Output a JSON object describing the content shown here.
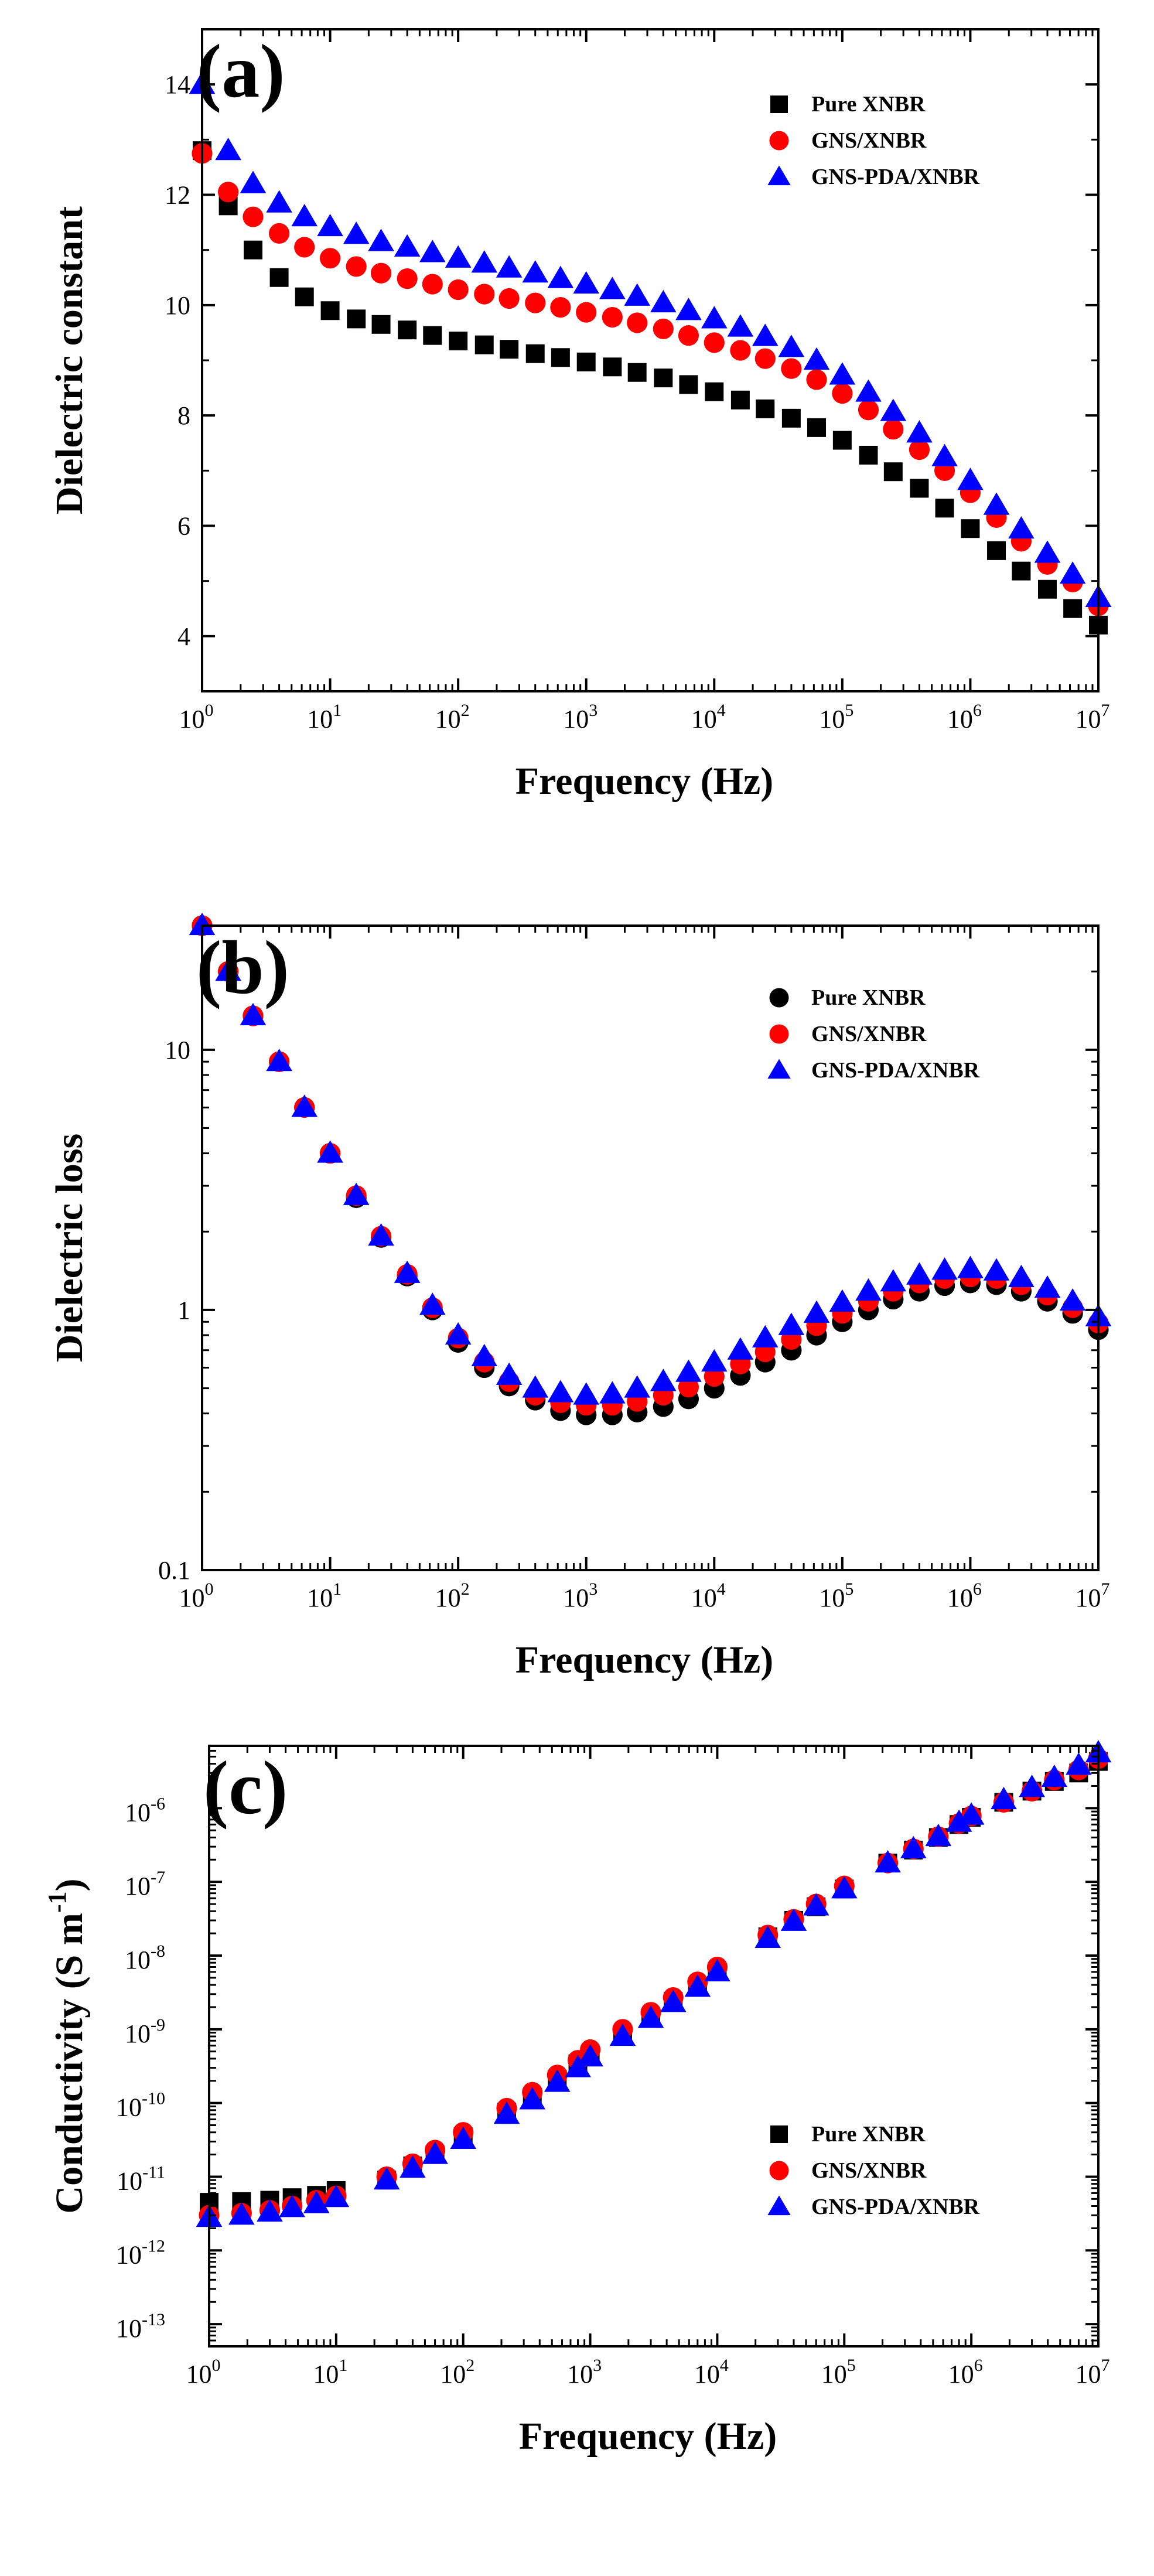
{
  "chart_data": [
    {
      "type": "scatter",
      "panel_label": "(a)",
      "xlabel": "Frequency (Hz)",
      "ylabel": "Dielectric constant",
      "xscale": "log",
      "yscale": "linear",
      "xlim": [
        1,
        10000000
      ],
      "ylim": [
        3,
        15
      ],
      "yticks": [
        4,
        6,
        8,
        10,
        12,
        14
      ],
      "xtick_bases": [
        "10",
        "10",
        "10",
        "10",
        "10",
        "10",
        "10",
        "10"
      ],
      "xtick_exponents": [
        "0",
        "1",
        "2",
        "3",
        "4",
        "5",
        "6",
        "7"
      ],
      "ytick_labels": [
        "4",
        "6",
        "8",
        "10",
        "12",
        "14"
      ],
      "legend_position": "top-right",
      "series": [
        {
          "name": "Pure XNBR",
          "marker": "square",
          "color": "#000000",
          "x": [
            1,
            1.6,
            2.5,
            4,
            6.3,
            10,
            16,
            25,
            40,
            63,
            100,
            160,
            250,
            400,
            630,
            1000,
            1600,
            2500,
            4000,
            6300,
            10000,
            16000,
            25000,
            40000,
            63000,
            100000,
            160000,
            250000,
            400000,
            630000,
            1000000,
            1600000,
            2500000,
            4000000,
            6300000,
            10000000
          ],
          "y": [
            12.8,
            11.8,
            11.0,
            10.5,
            10.15,
            9.9,
            9.75,
            9.65,
            9.55,
            9.45,
            9.35,
            9.28,
            9.2,
            9.12,
            9.05,
            8.97,
            8.88,
            8.78,
            8.68,
            8.56,
            8.43,
            8.28,
            8.12,
            7.95,
            7.78,
            7.55,
            7.28,
            6.98,
            6.68,
            6.32,
            5.95,
            5.55,
            5.18,
            4.85,
            4.5,
            4.2
          ]
        },
        {
          "name": "GNS/XNBR",
          "marker": "circle",
          "color": "#ff0000",
          "x": [
            1,
            1.6,
            2.5,
            4,
            6.3,
            10,
            16,
            25,
            40,
            63,
            100,
            160,
            250,
            400,
            630,
            1000,
            1600,
            2500,
            4000,
            6300,
            10000,
            16000,
            25000,
            40000,
            63000,
            100000,
            160000,
            250000,
            400000,
            630000,
            1000000,
            1600000,
            2500000,
            4000000,
            6300000,
            10000000
          ],
          "y": [
            12.75,
            12.05,
            11.6,
            11.3,
            11.05,
            10.85,
            10.7,
            10.58,
            10.48,
            10.38,
            10.28,
            10.2,
            10.12,
            10.04,
            9.96,
            9.87,
            9.78,
            9.68,
            9.57,
            9.45,
            9.32,
            9.18,
            9.03,
            8.85,
            8.65,
            8.4,
            8.1,
            7.75,
            7.38,
            7.0,
            6.6,
            6.15,
            5.72,
            5.3,
            4.98,
            4.55
          ]
        },
        {
          "name": "GNS-PDA/XNBR",
          "marker": "triangle",
          "color": "#0000ff",
          "x": [
            1,
            1.6,
            2.5,
            4,
            6.3,
            10,
            16,
            25,
            40,
            63,
            100,
            160,
            250,
            400,
            630,
            1000,
            1600,
            2500,
            4000,
            6300,
            10000,
            16000,
            25000,
            40000,
            63000,
            100000,
            160000,
            250000,
            400000,
            630000,
            1000000,
            1600000,
            2500000,
            4000000,
            6300000,
            10000000
          ],
          "y": [
            14.0,
            12.8,
            12.2,
            11.85,
            11.6,
            11.42,
            11.28,
            11.15,
            11.05,
            10.95,
            10.85,
            10.76,
            10.67,
            10.58,
            10.48,
            10.38,
            10.28,
            10.16,
            10.04,
            9.9,
            9.75,
            9.6,
            9.43,
            9.23,
            9.0,
            8.73,
            8.42,
            8.07,
            7.68,
            7.25,
            6.82,
            6.37,
            5.94,
            5.5,
            5.12,
            4.7
          ]
        }
      ]
    },
    {
      "type": "scatter",
      "panel_label": "(b)",
      "xlabel": "Frequency (Hz)",
      "ylabel": "Dielectric loss",
      "xscale": "log",
      "yscale": "log",
      "xlim": [
        1,
        10000000
      ],
      "ylim": [
        0.1,
        30
      ],
      "yticks": [
        0.1,
        1,
        10
      ],
      "xtick_bases": [
        "10",
        "10",
        "10",
        "10",
        "10",
        "10",
        "10",
        "10"
      ],
      "xtick_exponents": [
        "0",
        "1",
        "2",
        "3",
        "4",
        "5",
        "6",
        "7"
      ],
      "ytick_labels": [
        "0.1",
        "1",
        "10"
      ],
      "legend_position": "top-right",
      "series": [
        {
          "name": "Pure XNBR",
          "marker": "circle",
          "color": "#000000",
          "x": [
            1,
            1.6,
            2.5,
            4,
            6.3,
            10,
            16,
            25,
            40,
            63,
            100,
            160,
            250,
            400,
            630,
            1000,
            1600,
            2500,
            4000,
            6300,
            10000,
            16000,
            25000,
            40000,
            63000,
            100000,
            160000,
            250000,
            400000,
            630000,
            1000000,
            1600000,
            2500000,
            4000000,
            6300000,
            10000000
          ],
          "y": [
            30,
            20,
            13.5,
            9,
            6,
            4,
            2.7,
            1.9,
            1.35,
            1.0,
            0.75,
            0.6,
            0.51,
            0.45,
            0.41,
            0.395,
            0.395,
            0.405,
            0.425,
            0.455,
            0.5,
            0.56,
            0.63,
            0.7,
            0.8,
            0.9,
            1.0,
            1.1,
            1.18,
            1.24,
            1.27,
            1.25,
            1.18,
            1.08,
            0.97,
            0.84
          ]
        },
        {
          "name": "GNS/XNBR",
          "marker": "circle",
          "color": "#ff0000",
          "x": [
            1,
            1.6,
            2.5,
            4,
            6.3,
            10,
            16,
            25,
            40,
            63,
            100,
            160,
            250,
            400,
            630,
            1000,
            1600,
            2500,
            4000,
            6300,
            10000,
            16000,
            25000,
            40000,
            63000,
            100000,
            160000,
            250000,
            400000,
            630000,
            1000000,
            1600000,
            2500000,
            4000000,
            6300000,
            10000000
          ],
          "y": [
            30,
            20,
            13.5,
            9,
            6,
            4,
            2.75,
            1.92,
            1.37,
            1.02,
            0.78,
            0.63,
            0.53,
            0.47,
            0.44,
            0.43,
            0.43,
            0.445,
            0.47,
            0.505,
            0.555,
            0.62,
            0.69,
            0.77,
            0.87,
            0.97,
            1.08,
            1.18,
            1.27,
            1.32,
            1.34,
            1.32,
            1.25,
            1.14,
            1.02,
            0.89
          ]
        },
        {
          "name": "GNS-PDA/XNBR",
          "marker": "triangle",
          "color": "#0000ff",
          "x": [
            1,
            1.6,
            2.5,
            4,
            6.3,
            10,
            16,
            25,
            40,
            63,
            100,
            160,
            250,
            400,
            630,
            1000,
            1600,
            2500,
            4000,
            6300,
            10000,
            16000,
            25000,
            40000,
            63000,
            100000,
            160000,
            250000,
            400000,
            630000,
            1000000,
            1600000,
            2500000,
            4000000,
            6300000,
            10000000
          ],
          "y": [
            30,
            20,
            13.5,
            9,
            6,
            4,
            2.75,
            1.92,
            1.38,
            1.04,
            0.8,
            0.66,
            0.56,
            0.5,
            0.48,
            0.47,
            0.475,
            0.5,
            0.53,
            0.575,
            0.63,
            0.7,
            0.78,
            0.87,
            0.97,
            1.07,
            1.18,
            1.28,
            1.36,
            1.42,
            1.44,
            1.41,
            1.33,
            1.21,
            1.08,
            0.94
          ]
        }
      ]
    },
    {
      "type": "scatter",
      "panel_label": "(c)",
      "xlabel": "Frequency (Hz)",
      "ylabel": "Conductivity (S m-1)",
      "ylabel_base": "Conductivity (S m",
      "ylabel_exp": "-1",
      "ylabel_close": ")",
      "xscale": "log",
      "yscale": "log",
      "xlim": [
        1,
        10000000
      ],
      "ylim": [
        5e-14,
        7e-06
      ],
      "yticks": [
        1e-13,
        1e-12,
        1e-11,
        1e-10,
        1e-09,
        1e-08,
        1e-07,
        1e-06
      ],
      "xtick_bases": [
        "10",
        "10",
        "10",
        "10",
        "10",
        "10",
        "10",
        "10"
      ],
      "xtick_exponents": [
        "0",
        "1",
        "2",
        "3",
        "4",
        "5",
        "6",
        "7"
      ],
      "ytick_bases": [
        "10",
        "10",
        "10",
        "10",
        "10",
        "10",
        "10",
        "10"
      ],
      "ytick_exponents": [
        "-13",
        "-12",
        "-11",
        "-10",
        "-9",
        "-8",
        "-7",
        "-6"
      ],
      "legend_position": "bottom-right",
      "series": [
        {
          "name": "Pure XNBR",
          "marker": "square",
          "color": "#000000",
          "x": [
            1,
            1.8,
            3,
            4.5,
            7,
            10,
            25,
            40,
            60,
            100,
            220,
            350,
            550,
            800,
            1000,
            1800,
            3000,
            4500,
            7000,
            10000,
            25000,
            40000,
            60000,
            100000,
            220000,
            350000,
            550000,
            800000,
            1000000,
            1800000,
            3000000,
            4500000,
            7000000,
            10000000
          ],
          "y": [
            4.5e-12,
            4.6e-12,
            4.8e-12,
            5.2e-12,
            5.6e-12,
            6.5e-12,
            9e-12,
            1.4e-11,
            2e-11,
            3.5e-11,
            7.5e-11,
            1.2e-10,
            2.1e-10,
            3.4e-10,
            4.5e-10,
            8e-10,
            1.4e-09,
            2.4e-09,
            3.8e-09,
            6e-09,
            1.8e-08,
            3e-08,
            4.6e-08,
            8e-08,
            1.8e-07,
            2.7e-07,
            4e-07,
            6e-07,
            7.5e-07,
            1.2e-06,
            1.7e-06,
            2.3e-06,
            3e-06,
            4.3e-06
          ]
        },
        {
          "name": "GNS/XNBR",
          "marker": "circle",
          "color": "#ff0000",
          "x": [
            1,
            1.8,
            3,
            4.5,
            7,
            10,
            25,
            40,
            60,
            100,
            220,
            350,
            550,
            800,
            1000,
            1800,
            3000,
            4500,
            7000,
            10000,
            25000,
            40000,
            60000,
            100000,
            220000,
            350000,
            550000,
            800000,
            1000000,
            1800000,
            3000000,
            4500000,
            7000000,
            10000000
          ],
          "y": [
            3e-12,
            3.2e-12,
            3.5e-12,
            4e-12,
            4.8e-12,
            5.5e-12,
            1e-11,
            1.5e-11,
            2.3e-11,
            4e-11,
            8.5e-11,
            1.4e-10,
            2.4e-10,
            3.8e-10,
            5.3e-10,
            1e-09,
            1.7e-09,
            2.7e-09,
            4.4e-09,
            7e-09,
            1.9e-08,
            3.1e-08,
            5e-08,
            8.8e-08,
            1.8e-07,
            2.8e-07,
            4.1e-07,
            6.2e-07,
            7.8e-07,
            1.2e-06,
            1.7e-06,
            2.4e-06,
            3.3e-06,
            4.7e-06
          ]
        },
        {
          "name": "GNS-PDA/XNBR",
          "marker": "triangle",
          "color": "#0000ff",
          "x": [
            1,
            1.8,
            3,
            4.5,
            7,
            10,
            25,
            40,
            60,
            100,
            220,
            350,
            550,
            800,
            1000,
            1800,
            3000,
            4500,
            7000,
            10000,
            25000,
            40000,
            60000,
            100000,
            220000,
            350000,
            550000,
            800000,
            1000000,
            1800000,
            3000000,
            4500000,
            7000000,
            10000000
          ],
          "y": [
            2.8e-12,
            3e-12,
            3.3e-12,
            3.8e-12,
            4.3e-12,
            5.2e-12,
            9e-12,
            1.3e-11,
            2e-11,
            3.2e-11,
            7e-11,
            1.1e-10,
            1.9e-10,
            3e-10,
            4.2e-10,
            8e-10,
            1.4e-09,
            2.3e-09,
            3.7e-09,
            6e-09,
            1.7e-08,
            2.9e-08,
            4.7e-08,
            8e-08,
            1.8e-07,
            2.8e-07,
            4.1e-07,
            6.4e-07,
            8e-07,
            1.3e-06,
            1.9e-06,
            2.6e-06,
            3.8e-06,
            5.6e-06
          ]
        }
      ]
    }
  ]
}
